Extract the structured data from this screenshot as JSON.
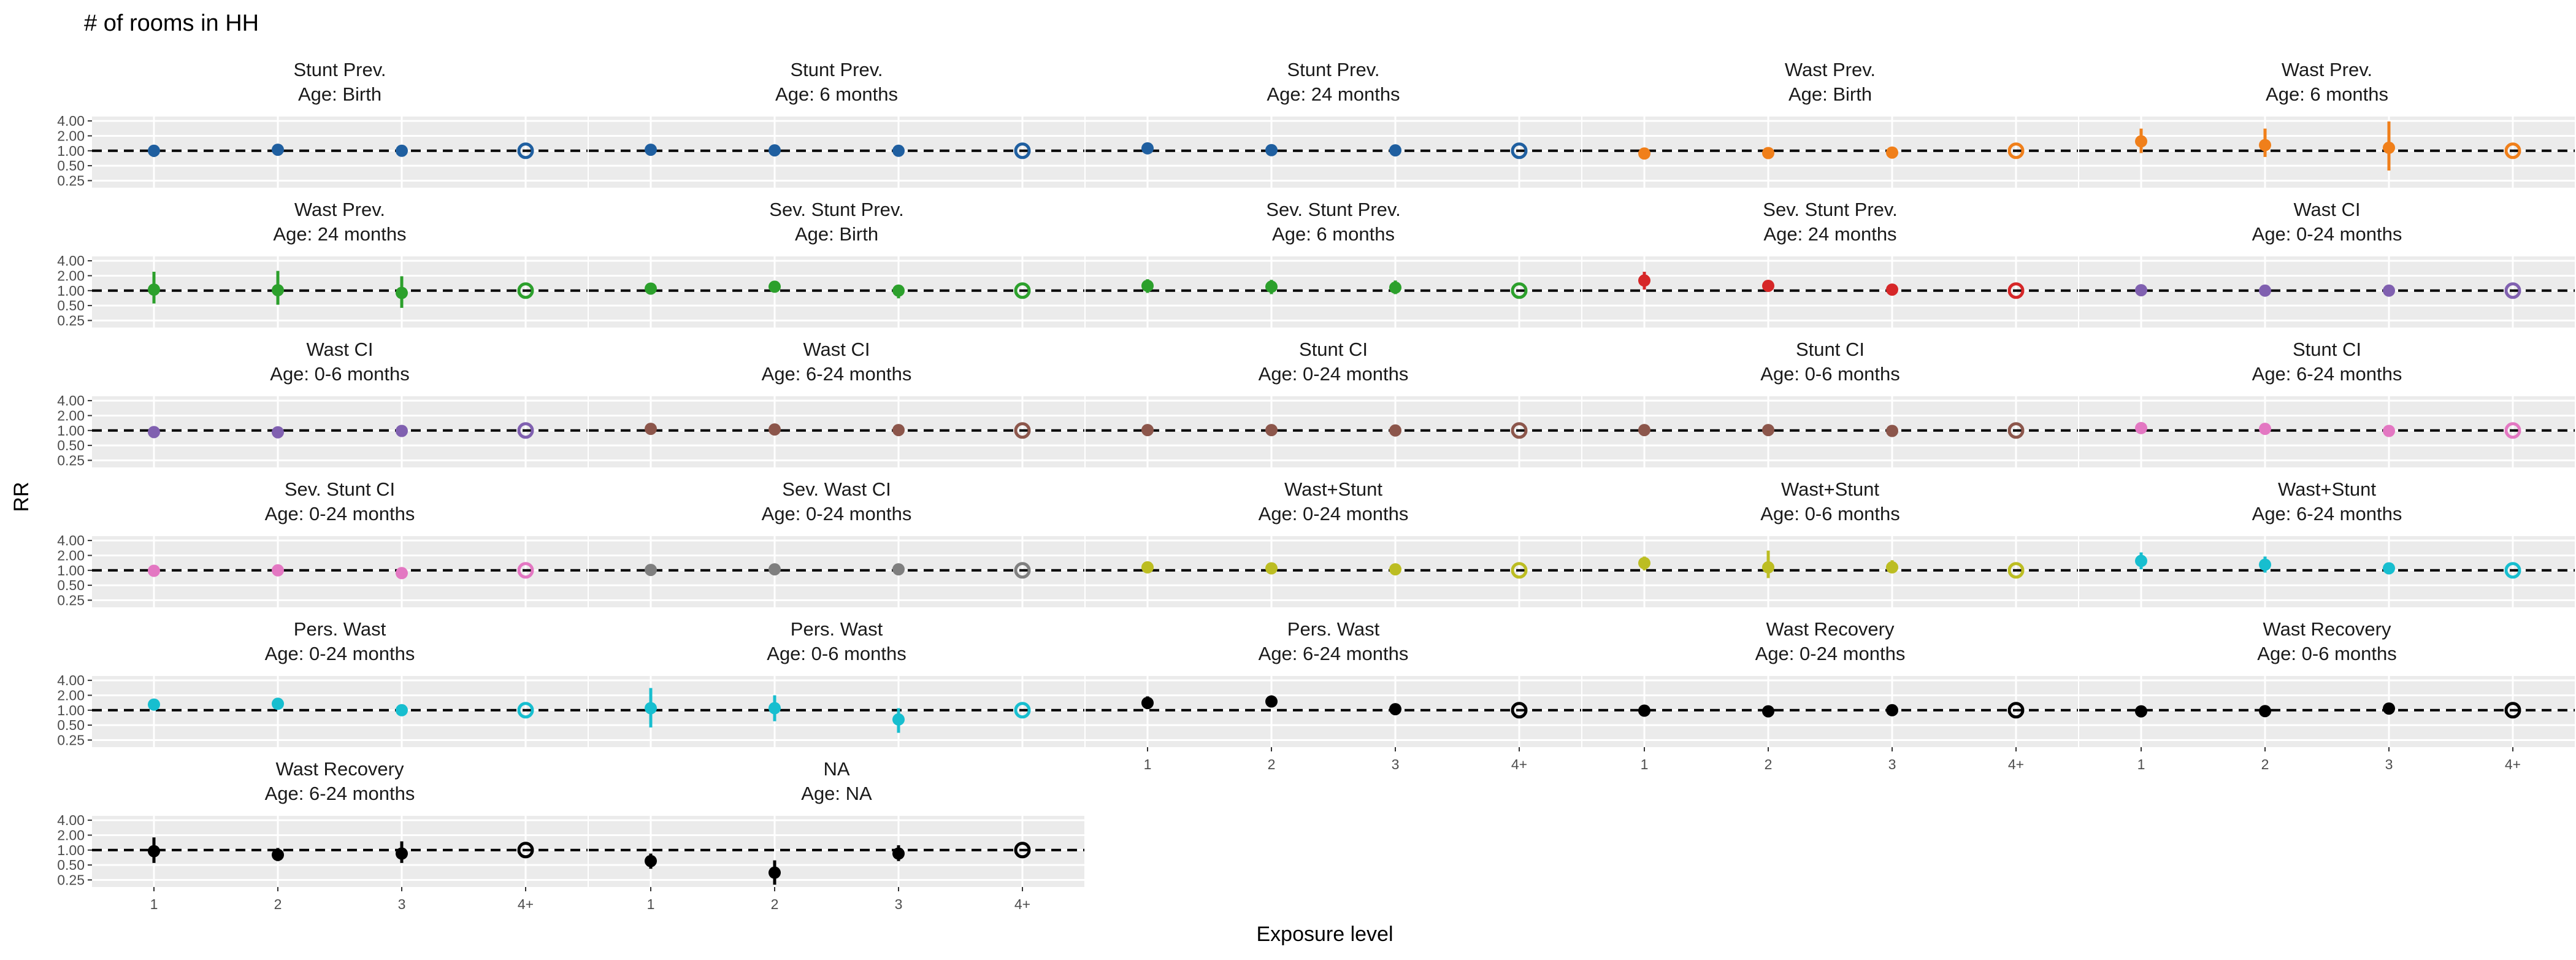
{
  "chart_data": {
    "type": "scatter",
    "title": "# of rooms in HH",
    "xlabel": "Exposure level",
    "ylabel": "RR",
    "x_categories": [
      "1",
      "2",
      "3",
      "4+"
    ],
    "y_scale": "log",
    "y_ticks": [
      "0.25",
      "0.50",
      "1.00",
      "2.00",
      "4.00"
    ],
    "y_tick_values": [
      0.25,
      0.5,
      1.0,
      2.0,
      4.0
    ],
    "ylim": [
      0.18,
      4.9
    ],
    "reference_line": 1.0,
    "reference_category": "4+",
    "legend": "none",
    "grid": true,
    "panels": [
      {
        "title": "Stunt Prev.",
        "subtitle": "Age: Birth",
        "color": "#1f5fa0",
        "values": [
          1.0,
          1.05,
          1.0,
          1.0
        ],
        "lower": [
          0.75,
          0.8,
          0.78,
          null
        ],
        "upper": [
          1.32,
          1.35,
          1.3,
          null
        ]
      },
      {
        "title": "Stunt Prev.",
        "subtitle": "Age: 6 months",
        "color": "#1f5fa0",
        "values": [
          1.05,
          1.02,
          1.0,
          1.0
        ],
        "lower": [
          0.92,
          0.9,
          0.88,
          null
        ],
        "upper": [
          1.18,
          1.15,
          1.14,
          null
        ]
      },
      {
        "title": "Stunt Prev.",
        "subtitle": "Age: 24 months",
        "color": "#1f5fa0",
        "values": [
          1.12,
          1.03,
          1.02,
          1.0
        ],
        "lower": [
          1.0,
          0.93,
          0.92,
          null
        ],
        "upper": [
          1.25,
          1.14,
          1.13,
          null
        ]
      },
      {
        "title": "Wast Prev.",
        "subtitle": "Age: Birth",
        "color": "#f07f1a",
        "values": [
          0.88,
          0.9,
          0.92,
          1.0
        ],
        "lower": [
          0.78,
          0.8,
          0.82,
          null
        ],
        "upper": [
          0.99,
          1.01,
          1.03,
          null
        ]
      },
      {
        "title": "Wast Prev.",
        "subtitle": "Age: 6 months",
        "color": "#f07f1a",
        "values": [
          1.55,
          1.3,
          1.15,
          1.0
        ],
        "lower": [
          0.9,
          0.75,
          0.4,
          null
        ],
        "upper": [
          2.8,
          2.8,
          3.9,
          null
        ]
      },
      {
        "title": "Wast Prev.",
        "subtitle": "Age: 24 months",
        "color": "#2ca02c",
        "values": [
          1.05,
          1.02,
          0.9,
          1.0
        ],
        "lower": [
          0.55,
          0.52,
          0.45,
          null
        ],
        "upper": [
          2.4,
          2.5,
          1.95,
          null
        ]
      },
      {
        "title": "Sev. Stunt Prev.",
        "subtitle": "Age: Birth",
        "color": "#2ca02c",
        "values": [
          1.1,
          1.2,
          1.0,
          1.0
        ],
        "lower": [
          0.95,
          1.02,
          0.7,
          null
        ],
        "upper": [
          1.28,
          1.4,
          1.3,
          null
        ]
      },
      {
        "title": "Sev. Stunt Prev.",
        "subtitle": "Age: 6 months",
        "color": "#2ca02c",
        "values": [
          1.25,
          1.2,
          1.15,
          1.0
        ],
        "lower": [
          0.9,
          0.85,
          0.85,
          null
        ],
        "upper": [
          1.7,
          1.65,
          1.6,
          null
        ]
      },
      {
        "title": "Sev. Stunt Prev.",
        "subtitle": "Age: 24 months",
        "color": "#d62728",
        "values": [
          1.6,
          1.25,
          1.05,
          1.0
        ],
        "lower": [
          1.05,
          1.02,
          0.92,
          null
        ],
        "upper": [
          2.4,
          1.5,
          1.2,
          null
        ]
      },
      {
        "title": "Wast CI",
        "subtitle": "Age: 0-24 months",
        "color": "#8060b0",
        "values": [
          1.02,
          1.0,
          1.0,
          1.0
        ],
        "lower": [
          0.93,
          0.92,
          0.92,
          null
        ],
        "upper": [
          1.1,
          1.09,
          1.09,
          null
        ]
      },
      {
        "title": "Wast CI",
        "subtitle": "Age: 0-6 months",
        "color": "#8060b0",
        "values": [
          0.93,
          0.92,
          0.98,
          1.0
        ],
        "lower": [
          0.83,
          0.83,
          0.88,
          null
        ],
        "upper": [
          1.04,
          1.02,
          1.08,
          null
        ]
      },
      {
        "title": "Wast CI",
        "subtitle": "Age: 6-24 months",
        "color": "#8c564b",
        "values": [
          1.08,
          1.05,
          1.02,
          1.0
        ],
        "lower": [
          0.98,
          0.96,
          0.93,
          null
        ],
        "upper": [
          1.18,
          1.15,
          1.12,
          null
        ]
      },
      {
        "title": "Stunt CI",
        "subtitle": "Age: 0-24 months",
        "color": "#8c564b",
        "values": [
          1.02,
          1.02,
          1.0,
          1.0
        ],
        "lower": [
          0.94,
          0.94,
          0.92,
          null
        ],
        "upper": [
          1.1,
          1.1,
          1.08,
          null
        ]
      },
      {
        "title": "Stunt CI",
        "subtitle": "Age: 0-6 months",
        "color": "#8c564b",
        "values": [
          1.02,
          1.02,
          0.98,
          1.0
        ],
        "lower": [
          0.92,
          0.92,
          0.9,
          null
        ],
        "upper": [
          1.12,
          1.12,
          1.07,
          null
        ]
      },
      {
        "title": "Stunt CI",
        "subtitle": "Age: 6-24 months",
        "color": "#e377c2",
        "values": [
          1.12,
          1.08,
          0.98,
          1.0
        ],
        "lower": [
          0.95,
          0.96,
          0.88,
          null
        ],
        "upper": [
          1.35,
          1.2,
          1.09,
          null
        ]
      },
      {
        "title": "Sev. Stunt CI",
        "subtitle": "Age: 0-24 months",
        "color": "#e377c2",
        "values": [
          0.98,
          1.0,
          0.88,
          1.0
        ],
        "lower": [
          0.88,
          0.9,
          0.8,
          null
        ],
        "upper": [
          1.09,
          1.1,
          0.97,
          null
        ]
      },
      {
        "title": "Sev. Wast CI",
        "subtitle": "Age: 0-24 months",
        "color": "#7f7f7f",
        "values": [
          1.02,
          1.05,
          1.05,
          1.0
        ],
        "lower": [
          0.92,
          0.95,
          0.95,
          null
        ],
        "upper": [
          1.12,
          1.15,
          1.15,
          null
        ]
      },
      {
        "title": "Wast+Stunt",
        "subtitle": "Age: 0-24 months",
        "color": "#bcbd22",
        "values": [
          1.15,
          1.1,
          1.05,
          1.0
        ],
        "lower": [
          0.98,
          0.95,
          0.9,
          null
        ],
        "upper": [
          1.4,
          1.35,
          1.25,
          null
        ]
      },
      {
        "title": "Wast+Stunt",
        "subtitle": "Age: 0-6 months",
        "color": "#bcbd22",
        "values": [
          1.4,
          1.15,
          1.15,
          1.0
        ],
        "lower": [
          1.0,
          0.7,
          0.9,
          null
        ],
        "upper": [
          1.9,
          2.5,
          1.6,
          null
        ]
      },
      {
        "title": "Wast+Stunt",
        "subtitle": "Age: 6-24 months",
        "color": "#17becf",
        "values": [
          1.55,
          1.3,
          1.1,
          1.0
        ],
        "lower": [
          1.05,
          0.9,
          0.92,
          null
        ],
        "upper": [
          2.3,
          1.9,
          1.35,
          null
        ]
      },
      {
        "title": "Pers. Wast",
        "subtitle": "Age: 0-24 months",
        "color": "#17becf",
        "values": [
          1.3,
          1.35,
          1.0,
          1.0
        ],
        "lower": [
          1.05,
          1.1,
          0.8,
          null
        ],
        "upper": [
          1.7,
          1.6,
          1.25,
          null
        ]
      },
      {
        "title": "Pers. Wast",
        "subtitle": "Age: 0-6 months",
        "color": "#17becf",
        "values": [
          1.1,
          1.1,
          0.65,
          1.0
        ],
        "lower": [
          0.45,
          0.6,
          0.35,
          null
        ],
        "upper": [
          2.8,
          2.0,
          1.1,
          null
        ]
      },
      {
        "title": "Pers. Wast",
        "subtitle": "Age: 6-24 months",
        "color": "#000000",
        "values": [
          1.4,
          1.5,
          1.05,
          1.0
        ],
        "lower": [
          1.05,
          1.2,
          0.85,
          null
        ],
        "upper": [
          1.9,
          1.85,
          1.35,
          null
        ]
      },
      {
        "title": "Wast Recovery",
        "subtitle": "Age: 0-24 months",
        "color": "#000000",
        "values": [
          0.98,
          0.95,
          1.0,
          1.0
        ],
        "lower": [
          0.92,
          0.88,
          0.93,
          null
        ],
        "upper": [
          1.05,
          1.02,
          1.08,
          null
        ]
      },
      {
        "title": "Wast Recovery",
        "subtitle": "Age: 0-6 months",
        "color": "#000000",
        "values": [
          0.95,
          0.96,
          1.08,
          1.0
        ],
        "lower": [
          0.88,
          0.88,
          0.98,
          null
        ],
        "upper": [
          1.03,
          1.04,
          1.2,
          null
        ]
      },
      {
        "title": "Wast Recovery",
        "subtitle": "Age: 6-24 months",
        "color": "#000000",
        "values": [
          0.95,
          0.8,
          0.85,
          1.0
        ],
        "lower": [
          0.55,
          0.6,
          0.55,
          null
        ],
        "upper": [
          1.8,
          1.1,
          1.5,
          null
        ]
      },
      {
        "title": "NA",
        "subtitle": "Age: NA",
        "color": "#000000",
        "values": [
          0.6,
          0.35,
          0.85,
          1.0
        ],
        "lower": [
          0.42,
          0.2,
          0.6,
          null
        ],
        "upper": [
          0.85,
          0.62,
          1.25,
          null
        ]
      }
    ]
  }
}
